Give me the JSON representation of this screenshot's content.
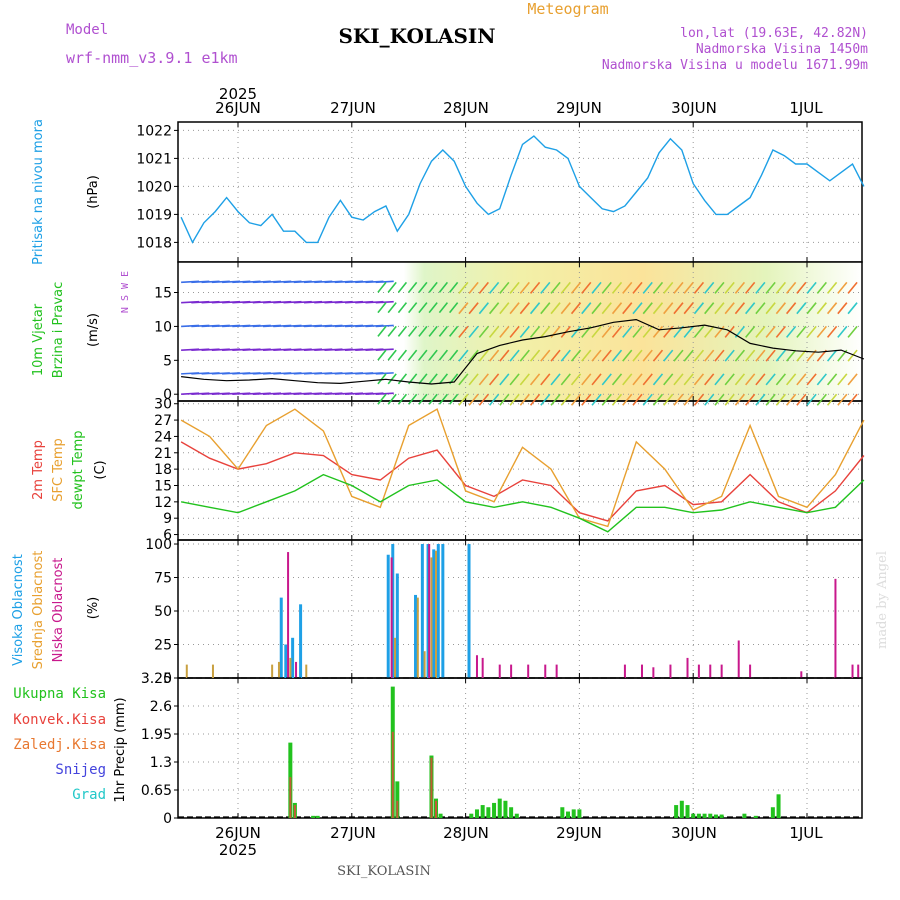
{
  "header": {
    "model_label": "Model",
    "model_name": "wrf-nmm_v3.9.1 e1km",
    "title": "SKI_KOLASIN",
    "meteogram_label": "Meteogram",
    "lonlat": "lon,lat (19.63E, 42.82N)",
    "elevation": "Nadmorska Visina 1450m",
    "model_elevation": "Nadmorska Visina u modelu 1671.99m",
    "year": "2025",
    "footer": "SKI_KOLASIN",
    "watermark": "made by Angel"
  },
  "colors": {
    "pressure": "#1ea0e6",
    "temp2m": "#e8423c",
    "sfc": "#e8a030",
    "dewpt": "#22c21e",
    "high_cloud": "#1ea0e6",
    "mid_cloud": "#c8a040",
    "low_cloud": "#c8188c",
    "total_precip": "#22c21e",
    "conv_precip": "#e8423c",
    "frozen_precip": "#e87830",
    "snow": "#4444dd",
    "hail": "#22c8c8",
    "purple_label": "#b050d0",
    "grid": "#999999"
  },
  "chart_data": [
    {
      "type": "line",
      "panel": "pressure",
      "ylabel": [
        "Pritisak na nivou mora",
        "(hPa)"
      ],
      "ylim": [
        1017.3,
        1022.3
      ],
      "yticks": [
        1018,
        1019,
        1020,
        1021,
        1022
      ],
      "x_day_ticks": [
        0,
        1,
        2,
        3,
        4,
        5
      ],
      "x_labels_top": [
        "26JUN",
        "27JUN",
        "28JUN",
        "29JUN",
        "30JUN",
        "1JUL"
      ],
      "grid": true,
      "series": [
        {
          "x": [
            -0.5,
            -0.4,
            -0.3,
            -0.2,
            -0.1,
            0,
            0.1,
            0.2,
            0.3,
            0.4,
            0.5,
            0.6,
            0.7,
            0.8,
            0.9,
            1.0,
            1.1,
            1.2,
            1.3,
            1.4,
            1.5,
            1.6,
            1.7,
            1.8,
            1.9,
            2.0,
            2.1,
            2.2,
            2.3,
            2.4,
            2.5,
            2.6,
            2.7,
            2.8,
            2.9,
            3.0,
            3.1,
            3.2,
            3.3,
            3.4,
            3.5,
            3.6,
            3.7,
            3.8,
            3.9,
            4.0,
            4.1,
            4.2,
            4.3,
            4.4,
            4.5,
            4.6,
            4.7,
            4.8,
            4.9,
            5.0,
            5.1,
            5.2,
            5.3,
            5.4,
            5.5
          ],
          "values": [
            1018.9,
            1018.0,
            1018.7,
            1019.1,
            1019.6,
            1019.1,
            1018.7,
            1018.6,
            1019.0,
            1018.4,
            1018.4,
            1018.0,
            1018.0,
            1018.9,
            1019.5,
            1018.9,
            1018.8,
            1019.1,
            1019.3,
            1018.4,
            1019.0,
            1020.1,
            1020.9,
            1021.3,
            1020.9,
            1020.0,
            1019.4,
            1019.0,
            1019.2,
            1020.4,
            1021.5,
            1021.8,
            1021.4,
            1021.3,
            1021.0,
            1020.0,
            1019.6,
            1019.2,
            1019.1,
            1019.3,
            1019.8,
            1020.3,
            1021.2,
            1021.7,
            1021.3,
            1020.1,
            1019.5,
            1019.0,
            1019.0,
            1019.3,
            1019.6,
            1020.4,
            1021.3,
            1021.1,
            1020.8,
            1020.8,
            1020.5,
            1020.2,
            1020.5,
            1020.8,
            1020.0
          ]
        }
      ]
    },
    {
      "type": "line",
      "panel": "wind",
      "ylabel": [
        "10m Vjetar",
        "Brzina i Pravac",
        "(m/s)"
      ],
      "compass": "N S W E",
      "ylim": [
        -1,
        19.5
      ],
      "yticks": [
        0,
        5,
        10,
        15
      ],
      "grid": true,
      "series": [
        {
          "name": "wind speed",
          "x": [
            -0.5,
            -0.3,
            -0.1,
            0.1,
            0.3,
            0.5,
            0.7,
            0.9,
            1.1,
            1.3,
            1.5,
            1.7,
            1.9,
            2.1,
            2.3,
            2.5,
            2.7,
            2.9,
            3.1,
            3.3,
            3.5,
            3.7,
            3.9,
            4.1,
            4.3,
            4.5,
            4.7,
            4.9,
            5.1,
            5.3,
            5.5
          ],
          "values": [
            2.6,
            2.2,
            2.0,
            2.1,
            2.3,
            2.0,
            1.7,
            1.6,
            1.9,
            2.2,
            1.8,
            1.5,
            1.8,
            6.0,
            7.2,
            8.0,
            8.5,
            9.2,
            9.8,
            10.6,
            11.0,
            9.5,
            9.8,
            10.2,
            9.5,
            7.5,
            6.8,
            6.4,
            6.2,
            6.5,
            5.2
          ]
        }
      ]
    },
    {
      "type": "line",
      "panel": "temperature",
      "ylabel": [
        "2m Temp",
        "SFC Temp",
        "dewpt Temp",
        "(C)"
      ],
      "ylim": [
        5,
        30.5
      ],
      "yticks": [
        6,
        9,
        12,
        15,
        18,
        21,
        24,
        27,
        30
      ],
      "grid": true,
      "series": [
        {
          "name": "2m Temp",
          "x": [
            -0.5,
            -0.25,
            0,
            0.25,
            0.5,
            0.75,
            1.0,
            1.25,
            1.5,
            1.75,
            2.0,
            2.25,
            2.5,
            2.75,
            3.0,
            3.25,
            3.5,
            3.75,
            4.0,
            4.25,
            4.5,
            4.75,
            5.0,
            5.25,
            5.5
          ],
          "values": [
            23,
            20,
            18,
            19,
            21,
            20.5,
            17,
            16,
            20,
            21.5,
            15,
            13,
            16,
            15,
            10,
            8.5,
            14,
            15,
            11.5,
            12,
            17,
            12,
            10,
            14,
            20.5
          ]
        },
        {
          "name": "SFC Temp",
          "x": [
            -0.5,
            -0.25,
            0,
            0.25,
            0.5,
            0.75,
            1.0,
            1.25,
            1.5,
            1.75,
            2.0,
            2.25,
            2.5,
            2.75,
            3.0,
            3.25,
            3.5,
            3.75,
            4.0,
            4.25,
            4.5,
            4.75,
            5.0,
            5.25,
            5.5
          ],
          "values": [
            27,
            24,
            18,
            26,
            29,
            25,
            13,
            11,
            26,
            29,
            14,
            12,
            22,
            18,
            9,
            7.5,
            23,
            18,
            10.5,
            13,
            26,
            13,
            11,
            17,
            27
          ]
        },
        {
          "name": "dewpt Temp",
          "x": [
            -0.5,
            -0.25,
            0,
            0.25,
            0.5,
            0.75,
            1.0,
            1.25,
            1.5,
            1.75,
            2.0,
            2.25,
            2.5,
            2.75,
            3.0,
            3.25,
            3.5,
            3.75,
            4.0,
            4.25,
            4.5,
            4.75,
            5.0,
            5.25,
            5.5
          ],
          "values": [
            12,
            11,
            10,
            12,
            14,
            17,
            15,
            12,
            15,
            16,
            12,
            11,
            12,
            11,
            9,
            6.5,
            11,
            11,
            10,
            10.5,
            12,
            11,
            10,
            11,
            16
          ]
        }
      ]
    },
    {
      "type": "bar",
      "panel": "cloud",
      "ylabel": [
        "Visoka Oblacnost",
        "Srednja Oblacnost",
        "Niska Oblacnost",
        "(%)"
      ],
      "ylim": [
        0,
        103
      ],
      "yticks": [
        0,
        25,
        50,
        75,
        100
      ],
      "grid": true,
      "series": [
        {
          "name": "Visoka Oblacnost",
          "x": [
            0.38,
            0.42,
            0.48,
            0.55,
            1.32,
            1.36,
            1.4,
            1.56,
            1.62,
            1.67,
            1.72,
            1.76,
            1.8,
            2.03
          ],
          "values": [
            60,
            25,
            30,
            55,
            92,
            100,
            78,
            62,
            100,
            100,
            96,
            100,
            100,
            100
          ]
        },
        {
          "name": "Srednja Oblacnost",
          "x": [
            -0.45,
            -0.22,
            0.3,
            0.36,
            0.46,
            0.6,
            1.38,
            1.58,
            1.64,
            1.7,
            1.74
          ],
          "values": [
            10,
            10,
            10,
            12,
            15,
            10,
            30,
            60,
            20,
            90,
            95
          ]
        },
        {
          "name": "Niska Oblacnost",
          "x": [
            0.44,
            0.51,
            1.35,
            1.68,
            2.1,
            2.15,
            2.3,
            2.4,
            2.55,
            2.7,
            2.8,
            3.4,
            3.55,
            3.65,
            3.8,
            3.95,
            4.05,
            4.15,
            4.25,
            4.4,
            4.5,
            4.95,
            5.25,
            5.4,
            5.45
          ],
          "values": [
            94,
            12,
            90,
            100,
            17,
            15,
            10,
            10,
            10,
            10,
            10,
            10,
            10,
            8,
            10,
            15,
            10,
            10,
            10,
            28,
            10,
            5,
            74,
            10,
            10
          ]
        }
      ]
    },
    {
      "type": "bar",
      "panel": "precip",
      "ylabel": [
        "1hr Precip (mm)"
      ],
      "legend": [
        "Ukupna Kisa",
        "Konvek.Kisa",
        "Zaledj.Kisa",
        "Snijeg",
        "Grad"
      ],
      "ylim": [
        0,
        3.25
      ],
      "yticks": [
        0,
        0.65,
        1.3,
        1.95,
        2.6,
        3.25
      ],
      "x_labels_bottom": [
        "26JUN",
        "27JUN",
        "28JUN",
        "29JUN",
        "30JUN",
        "1JUL"
      ],
      "grid": true,
      "series": [
        {
          "name": "Ukupna Kisa",
          "x": [
            0.46,
            0.5,
            0.66,
            0.7,
            1.36,
            1.4,
            1.7,
            1.74,
            1.78,
            2.05,
            2.1,
            2.15,
            2.2,
            2.25,
            2.3,
            2.35,
            2.4,
            2.45,
            2.85,
            2.9,
            2.95,
            3.0,
            3.85,
            3.9,
            3.95,
            4.0,
            4.05,
            4.1,
            4.15,
            4.2,
            4.25,
            4.45,
            4.55,
            4.7,
            4.75
          ],
          "values": [
            1.75,
            0.35,
            0.05,
            0.05,
            3.05,
            0.85,
            1.45,
            0.45,
            0.1,
            0.1,
            0.2,
            0.3,
            0.25,
            0.35,
            0.45,
            0.4,
            0.25,
            0.1,
            0.25,
            0.15,
            0.2,
            0.2,
            0.3,
            0.4,
            0.3,
            0.1,
            0.1,
            0.1,
            0.1,
            0.08,
            0.08,
            0.1,
            0.05,
            0.25,
            0.55
          ]
        },
        {
          "name": "Konvek.Kisa",
          "x": [
            0.46,
            0.5,
            1.36,
            1.4,
            1.7,
            1.74
          ],
          "values": [
            0.95,
            0.3,
            2.0,
            0.4,
            1.4,
            0.4
          ]
        }
      ]
    }
  ]
}
